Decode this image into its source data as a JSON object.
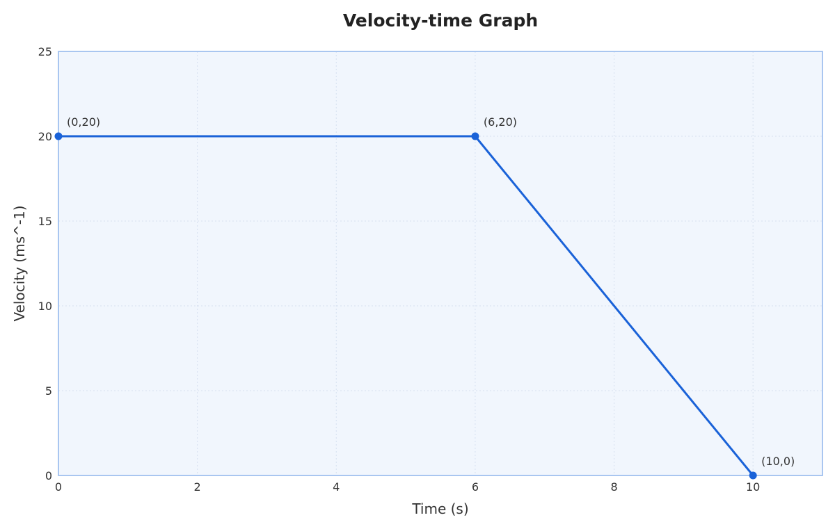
{
  "chart_data": {
    "type": "line",
    "title": "Velocity-time Graph",
    "xlabel": "Time (s)",
    "ylabel": "Velocity (ms^-1)",
    "xlim": [
      0,
      11
    ],
    "ylim": [
      0,
      25
    ],
    "x_ticks": [
      0,
      2,
      4,
      6,
      8,
      10
    ],
    "y_ticks": [
      0,
      5,
      10,
      15,
      20,
      25
    ],
    "grid": true,
    "series": [
      {
        "x": [
          0,
          6,
          10
        ],
        "y": [
          20,
          20,
          0
        ],
        "color": "#1a62d8"
      }
    ],
    "annotations": [
      {
        "text": "(0,20)",
        "x": 0,
        "y": 20
      },
      {
        "text": "(6,20)",
        "x": 6,
        "y": 20
      },
      {
        "text": "(10,0)",
        "x": 10,
        "y": 0
      }
    ],
    "colors": {
      "plot_background": "#f1f6fd",
      "plot_border": "#a9c6f0",
      "line": "#1a62d8"
    }
  }
}
